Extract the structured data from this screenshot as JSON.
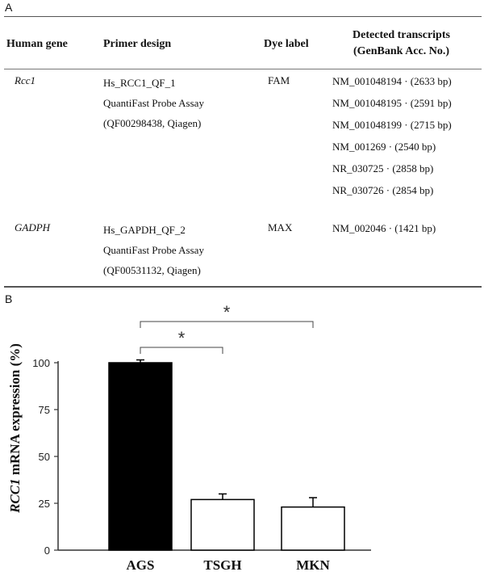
{
  "panel_a": {
    "label": "A",
    "headers": {
      "gene": "Human gene",
      "primer": "Primer design",
      "dye": "Dye label",
      "detected_line1": "Detected transcripts",
      "detected_line2": "(GenBank Acc. No.)"
    },
    "rows": [
      {
        "gene": "Rcc1",
        "primer": [
          "Hs_RCC1_QF_1",
          "QuantiFast Probe Assay",
          "(QF00298438, Qiagen)"
        ],
        "dye": "FAM",
        "transcripts": [
          "NM_001048194 · (2633 bp)",
          "NM_001048195 · (2591 bp)",
          "NM_001048199 · (2715 bp)",
          "NM_001269 · (2540 bp)",
          "NR_030725 · (2858 bp)",
          "NR_030726 · (2854 bp)"
        ]
      },
      {
        "gene": "GADPH",
        "primer": [
          "Hs_GAPDH_QF_2",
          "QuantiFast Probe Assay",
          "(QF00531132, Qiagen)"
        ],
        "dye": "MAX",
        "transcripts": [
          "NM_002046 · (1421 bp)"
        ]
      }
    ]
  },
  "panel_b": {
    "label": "B"
  },
  "chart_data": {
    "type": "bar",
    "categories": [
      "AGS",
      "TSGH",
      "MKN"
    ],
    "values": [
      100,
      27,
      23
    ],
    "errors": [
      1.5,
      3,
      5
    ],
    "colors": [
      "#000000",
      "#ffffff",
      "#ffffff"
    ],
    "ylabel_italic": "RCC1",
    "ylabel_rest": " mRNA expression (%)",
    "ylim": [
      0,
      100
    ],
    "yticks": [
      0,
      25,
      50,
      75,
      100
    ],
    "significance": [
      {
        "from": 0,
        "to": 1,
        "label": "*"
      },
      {
        "from": 0,
        "to": 2,
        "label": "*"
      }
    ]
  }
}
